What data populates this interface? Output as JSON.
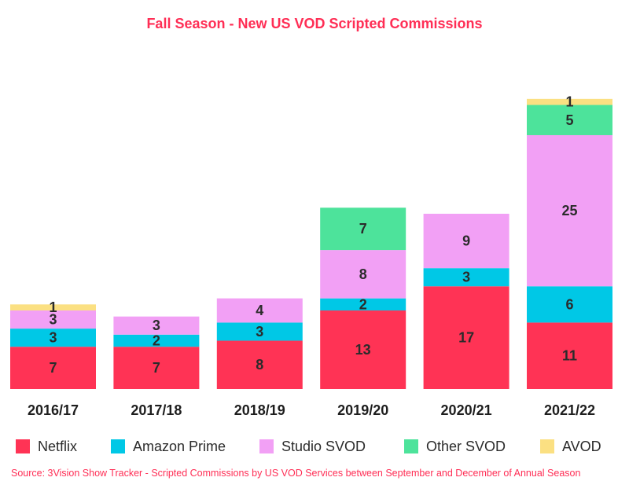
{
  "chart_data": {
    "type": "bar",
    "stacked": true,
    "title": "Fall Season - New US VOD Scripted Commissions",
    "categories": [
      "2016/17",
      "2017/18",
      "2018/19",
      "2019/20",
      "2020/21",
      "2021/22"
    ],
    "series": [
      {
        "name": "Netflix",
        "color": "#ff3355",
        "values": [
          7,
          7,
          8,
          13,
          17,
          11
        ]
      },
      {
        "name": "Amazon Prime",
        "color": "#00c8e6",
        "values": [
          3,
          2,
          3,
          2,
          3,
          6
        ]
      },
      {
        "name": "Studio SVOD",
        "color": "#f2a0f5",
        "values": [
          3,
          3,
          4,
          8,
          9,
          25
        ]
      },
      {
        "name": "Other SVOD",
        "color": "#4de39b",
        "values": [
          0,
          0,
          0,
          7,
          0,
          5
        ]
      },
      {
        "name": "AVOD",
        "color": "#fbe082",
        "values": [
          1,
          0,
          0,
          0,
          0,
          1
        ]
      }
    ],
    "ylim": [
      0,
      55
    ],
    "grid": false,
    "legend_position": "bottom",
    "source": "Source: 3Vision Show Tracker - Scripted Commissions by US VOD Services between September and December of Annual Season"
  }
}
